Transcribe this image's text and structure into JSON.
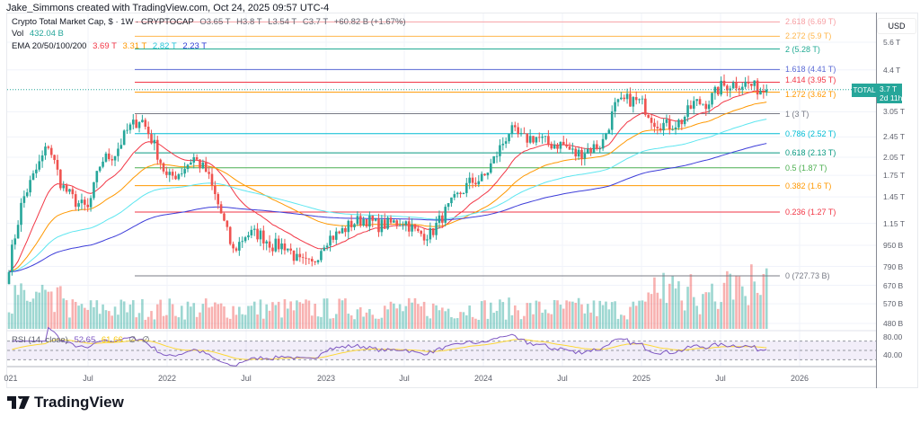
{
  "credit": "Jake_Simmons created with TradingView.com, Oct 24, 2025 09:57 UTC-4",
  "legend": {
    "symbol": "Crypto Total Market Cap, $ · 1W · CRYPTOCAP",
    "open": "O3.65 T",
    "high": "H3.8 T",
    "low": "L3.54 T",
    "close": "C3.7 T",
    "change": "+60.82 B (+1.67%)",
    "vol_label": "Vol",
    "vol_value": "432.04 B",
    "ema_label": "EMA 20/50/100/200",
    "ema20": "3.69 T",
    "ema50": "3.31 T",
    "ema100": "2.82 T",
    "ema200": "2.23 T",
    "rsi_label": "RSI (14, close)",
    "rsi_value": "52.65",
    "rsi_ma": "61.66",
    "rsi_n1": "∅",
    "rsi_n2": "∅"
  },
  "currency": "USD",
  "price_axis": [
    "5.6 T",
    "4.4 T",
    "3.05 T",
    "2.45 T",
    "2.05 T",
    "1.75 T",
    "1.45 T",
    "1.15 T",
    "950 B",
    "790 B",
    "670 B",
    "570 B",
    "480 B"
  ],
  "rsi_axis": [
    "80.00",
    "40.00"
  ],
  "time_axis": [
    "021",
    "Jul",
    "2022",
    "Jul",
    "2023",
    "Jul",
    "2024",
    "Jul",
    "2025",
    "Jul",
    "2026"
  ],
  "current": {
    "symbol": "TOTAL",
    "price": "3.7 T",
    "countdown": "2d 11h"
  },
  "fib_levels": [
    {
      "label": "2.618 (6.69 T)",
      "value": 6.69,
      "color": "#f7a1a5"
    },
    {
      "label": "2.272 (5.9 T)",
      "value": 5.9,
      "color": "#ffb74d"
    },
    {
      "label": "2 (5.28 T)",
      "value": 5.28,
      "color": "#22ab94"
    },
    {
      "label": "1.618 (4.41 T)",
      "value": 4.41,
      "color": "#5b6ad6"
    },
    {
      "label": "1.414 (3.95 T)",
      "value": 3.95,
      "color": "#f23645"
    },
    {
      "label": "1.272 (3.62 T)",
      "value": 3.62,
      "color": "#ff9800"
    },
    {
      "label": "1 (3 T)",
      "value": 3.0,
      "color": "#787b86"
    },
    {
      "label": "0.786 (2.52 T)",
      "value": 2.52,
      "color": "#00bcd4"
    },
    {
      "label": "0.618 (2.13 T)",
      "value": 2.13,
      "color": "#089981"
    },
    {
      "label": "0.5 (1.87 T)",
      "value": 1.87,
      "color": "#4caf50"
    },
    {
      "label": "0.382 (1.6 T)",
      "value": 1.6,
      "color": "#ff9800"
    },
    {
      "label": "0.236 (1.27 T)",
      "value": 1.27,
      "color": "#f23645"
    },
    {
      "label": "0 (727.73 B)",
      "value": 0.72773,
      "color": "#787b86"
    }
  ],
  "colors": {
    "up": "#26a69a",
    "down": "#ef5350",
    "ema20": "#f23645",
    "ema50": "#ff9800",
    "ema100": "#5ee6f0",
    "ema200": "#3d3dd9",
    "rsi": "#7e57c2",
    "rsi_ma": "#fdd835"
  },
  "logo": "TradingView",
  "chart_data": {
    "type": "candlestick",
    "scale": "log",
    "interval": "1W",
    "unit": "T USD",
    "monthly_close_approx": [
      [
        "2021-01",
        0.8
      ],
      [
        "2021-02",
        1.4
      ],
      [
        "2021-03",
        1.8
      ],
      [
        "2021-04",
        2.3
      ],
      [
        "2021-05",
        1.6
      ],
      [
        "2021-06",
        1.4
      ],
      [
        "2021-07",
        1.3
      ],
      [
        "2021-08",
        2.0
      ],
      [
        "2021-09",
        2.1
      ],
      [
        "2021-10",
        2.6
      ],
      [
        "2021-11",
        2.9
      ],
      [
        "2021-12",
        2.3
      ],
      [
        "2022-01",
        1.7
      ],
      [
        "2022-02",
        1.8
      ],
      [
        "2022-03",
        2.05
      ],
      [
        "2022-04",
        1.8
      ],
      [
        "2022-05",
        1.3
      ],
      [
        "2022-06",
        0.9
      ],
      [
        "2022-07",
        1.05
      ],
      [
        "2022-08",
        1.05
      ],
      [
        "2022-09",
        0.95
      ],
      [
        "2022-10",
        0.95
      ],
      [
        "2022-11",
        0.82
      ],
      [
        "2022-12",
        0.8
      ],
      [
        "2023-01",
        1.0
      ],
      [
        "2023-02",
        1.05
      ],
      [
        "2023-03",
        1.15
      ],
      [
        "2023-04",
        1.2
      ],
      [
        "2023-05",
        1.13
      ],
      [
        "2023-06",
        1.15
      ],
      [
        "2023-07",
        1.18
      ],
      [
        "2023-08",
        1.05
      ],
      [
        "2023-09",
        1.05
      ],
      [
        "2023-10",
        1.25
      ],
      [
        "2023-11",
        1.45
      ],
      [
        "2023-12",
        1.65
      ],
      [
        "2024-01",
        1.7
      ],
      [
        "2024-02",
        2.1
      ],
      [
        "2024-03",
        2.6
      ],
      [
        "2024-04",
        2.4
      ],
      [
        "2024-05",
        2.45
      ],
      [
        "2024-06",
        2.3
      ],
      [
        "2024-07",
        2.3
      ],
      [
        "2024-08",
        2.1
      ],
      [
        "2024-09",
        2.2
      ],
      [
        "2024-10",
        2.3
      ],
      [
        "2024-11",
        3.2
      ],
      [
        "2024-12",
        3.4
      ],
      [
        "2025-01",
        3.3
      ],
      [
        "2025-02",
        2.8
      ],
      [
        "2025-03",
        2.7
      ],
      [
        "2025-04",
        2.8
      ],
      [
        "2025-05",
        3.3
      ],
      [
        "2025-06",
        3.3
      ],
      [
        "2025-07",
        3.8
      ],
      [
        "2025-08",
        3.9
      ],
      [
        "2025-09",
        3.9
      ],
      [
        "2025-10",
        3.7
      ]
    ]
  }
}
